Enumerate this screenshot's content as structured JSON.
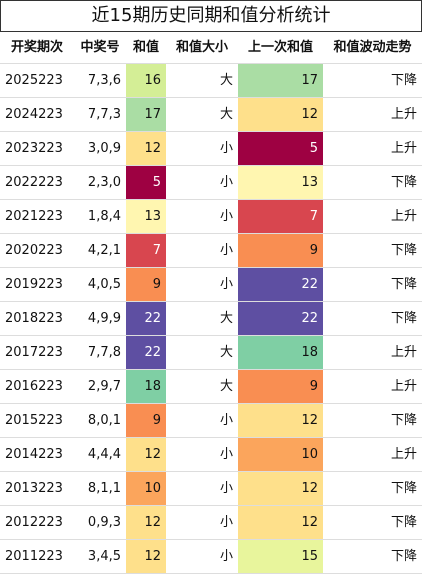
{
  "title": "近15期历史同期和值分析统计",
  "table": {
    "header": [
      "开奖期次",
      "中奖号",
      "和值",
      "和值大小",
      "上一次和值",
      "和值波动走势"
    ],
    "rows": [
      [
        "2025223",
        "7,3,6",
        "16",
        "大",
        "17",
        "下降"
      ],
      [
        "2024223",
        "7,7,3",
        "17",
        "大",
        "12",
        "上升"
      ],
      [
        "2023223",
        "3,0,9",
        "12",
        "小",
        "5",
        "上升"
      ],
      [
        "2022223",
        "2,3,0",
        "5",
        "小",
        "13",
        "下降"
      ],
      [
        "2021223",
        "1,8,4",
        "13",
        "小",
        "7",
        "上升"
      ],
      [
        "2020223",
        "4,2,1",
        "7",
        "小",
        "9",
        "下降"
      ],
      [
        "2019223",
        "4,0,5",
        "9",
        "小",
        "22",
        "下降"
      ],
      [
        "2018223",
        "4,9,9",
        "22",
        "大",
        "22",
        "下降"
      ],
      [
        "2017223",
        "7,7,8",
        "22",
        "大",
        "18",
        "上升"
      ],
      [
        "2016223",
        "2,9,7",
        "18",
        "大",
        "9",
        "上升"
      ],
      [
        "2015223",
        "8,0,1",
        "9",
        "小",
        "12",
        "下降"
      ],
      [
        "2014223",
        "4,4,4",
        "12",
        "小",
        "10",
        "上升"
      ],
      [
        "2013223",
        "8,1,1",
        "10",
        "小",
        "12",
        "下降"
      ],
      [
        "2012223",
        "0,9,3",
        "12",
        "小",
        "12",
        "下降"
      ],
      [
        "2011223",
        "3,4,5",
        "12",
        "小",
        "15",
        "下降"
      ]
    ],
    "cell_colors": [
      [
        "#d4ee96",
        "#aadda4"
      ],
      [
        "#aadda4",
        "#fee08b"
      ],
      [
        "#fee08b",
        "#9e0142"
      ],
      [
        "#9e0142",
        "#fff6b0"
      ],
      [
        "#fff6b0",
        "#d8464f"
      ],
      [
        "#d8464f",
        "#f98e52"
      ],
      [
        "#f98e52",
        "#5e4fa2"
      ],
      [
        "#5e4fa2",
        "#5e4fa2"
      ],
      [
        "#5e4fa2",
        "#7fcfa4"
      ],
      [
        "#7fcfa4",
        "#f98e52"
      ],
      [
        "#f98e52",
        "#fee08b"
      ],
      [
        "#fee08b",
        "#fba55c"
      ],
      [
        "#fba55c",
        "#fee08b"
      ],
      [
        "#fee08b",
        "#fee08b"
      ],
      [
        "#fee08b",
        "#e8f59c"
      ]
    ]
  }
}
